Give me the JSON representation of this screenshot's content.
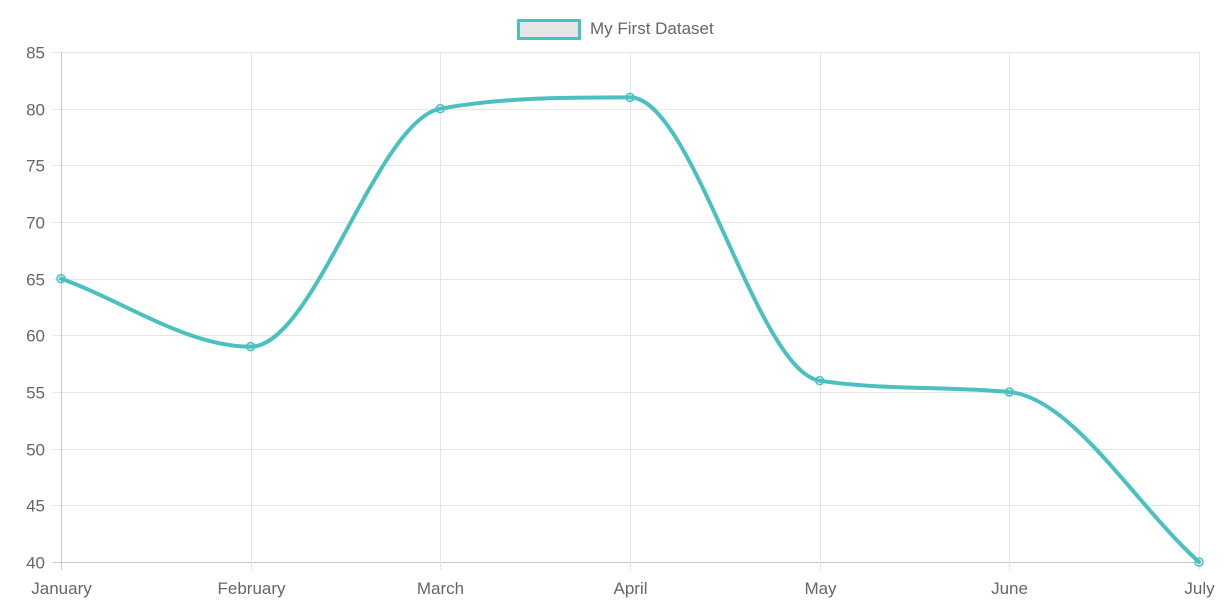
{
  "chart_data": {
    "type": "line",
    "categories": [
      "January",
      "February",
      "March",
      "April",
      "May",
      "June",
      "July"
    ],
    "series": [
      {
        "name": "My First Dataset",
        "values": [
          65,
          59,
          80,
          81,
          56,
          55,
          40
        ],
        "color": "#4bc0c0"
      }
    ],
    "ylim": [
      40,
      85
    ],
    "yticks": [
      40,
      45,
      50,
      55,
      60,
      65,
      70,
      75,
      80,
      85
    ],
    "grid": true,
    "legend": "top-center",
    "smooth": true
  },
  "colors": {
    "line": "#4bc0c0",
    "legend_fill": "#e5e5e5",
    "grid": "#e5e5e5",
    "axis": "#c8c8c8",
    "text": "#666666"
  }
}
